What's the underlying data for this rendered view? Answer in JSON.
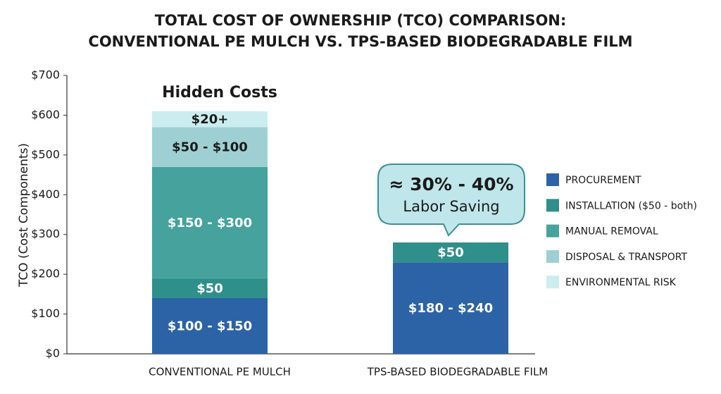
{
  "chart_data": {
    "type": "stacked_bar",
    "title": [
      "TOTAL COST OF OWNERSHIP (TCO) COMPARISON:",
      "CONVENTIONAL PE MULCH VS. TPS-BASED BIODEGRADABLE FILM"
    ],
    "y_label": "TCO (Cost Components)",
    "categories": [
      "CONVENTIONAL PE MULCH",
      "TPS-BASED BIODEGRADABLE FILM"
    ],
    "series": [
      {
        "name": "PROCUREMENT",
        "color": "#2b63a6",
        "values": [
          140,
          230
        ],
        "value_labels": [
          "$100 - $150",
          "$180 - $240"
        ]
      },
      {
        "name": "INSTALLATION ($50 - both)",
        "color": "#2f8f8b",
        "values": [
          50,
          50
        ],
        "value_labels": [
          "$50",
          "$50"
        ]
      },
      {
        "name": "MANUAL REMOVAL",
        "color": "#45a29c",
        "values": [
          280,
          0
        ],
        "value_labels": [
          "$150 - $300",
          null
        ]
      },
      {
        "name": "DISPOSAL & TRANSPORT",
        "color": "#9ed0d3",
        "values": [
          100,
          0
        ],
        "value_labels": [
          "$50 - $100",
          null
        ]
      },
      {
        "name": "ENVIRONMENTAL RISK",
        "color": "#ccedf0",
        "values": [
          40,
          0
        ],
        "value_labels": [
          "$20+",
          null
        ]
      }
    ],
    "ylim": [
      0,
      700
    ],
    "yticks": [
      {
        "value": 0,
        "label": "$0"
      },
      {
        "value": 100,
        "label": "$100"
      },
      {
        "value": 200,
        "label": "$200"
      },
      {
        "value": 300,
        "label": "$300"
      },
      {
        "value": 400,
        "label": "$400"
      },
      {
        "value": 500,
        "label": "$500"
      },
      {
        "value": 600,
        "label": "$600"
      },
      {
        "value": 700,
        "label": "$700"
      }
    ],
    "annotations": [
      "Hidden Costs",
      "≈ 30% - 40%",
      "Labor Saving"
    ],
    "legend": "right"
  }
}
